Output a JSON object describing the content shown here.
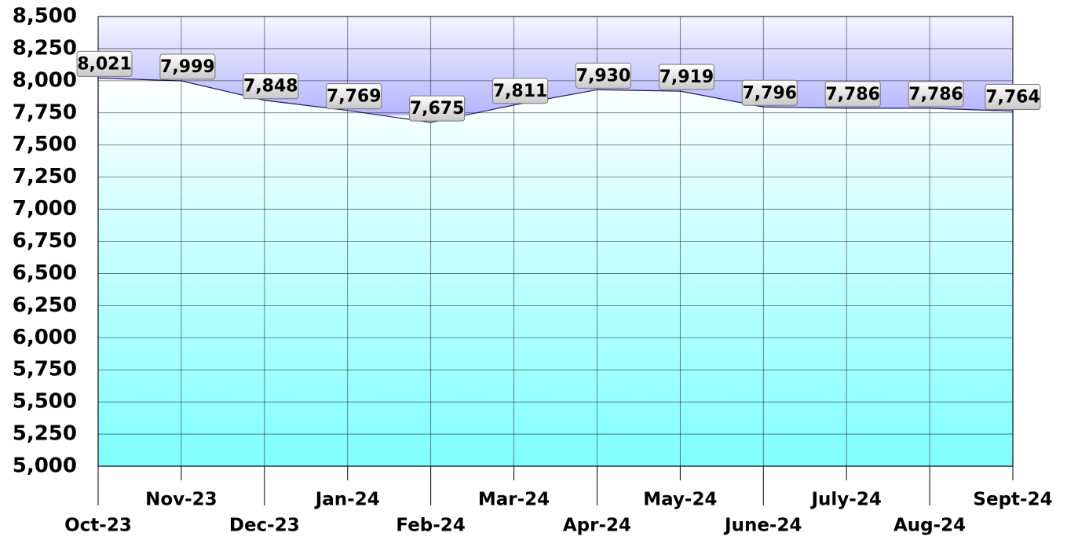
{
  "chart_data": {
    "type": "area",
    "categories": [
      "Oct-23",
      "Nov-23",
      "Dec-23",
      "Jan-24",
      "Feb-24",
      "Mar-24",
      "Apr-24",
      "May-24",
      "June-24",
      "July-24",
      "Aug-24",
      "Sept-24"
    ],
    "values": [
      8021,
      7999,
      7848,
      7769,
      7675,
      7811,
      7930,
      7919,
      7796,
      7786,
      7786,
      7764
    ],
    "value_labels": [
      "8,021",
      "7,999",
      "7,848",
      "7,769",
      "7,675",
      "7,811",
      "7,930",
      "7,919",
      "7,796",
      "7,786",
      "7,786",
      "7,764"
    ],
    "ylim": [
      5000,
      8500
    ],
    "yticks": [
      {
        "value": 5000,
        "label": "5,000"
      },
      {
        "value": 5250,
        "label": "5,250"
      },
      {
        "value": 5500,
        "label": "5,500"
      },
      {
        "value": 5750,
        "label": "5,750"
      },
      {
        "value": 6000,
        "label": "6,000"
      },
      {
        "value": 6250,
        "label": "6,250"
      },
      {
        "value": 6500,
        "label": "6,500"
      },
      {
        "value": 6750,
        "label": "6,750"
      },
      {
        "value": 7000,
        "label": "7,000"
      },
      {
        "value": 7250,
        "label": "7,250"
      },
      {
        "value": 7500,
        "label": "7,500"
      },
      {
        "value": 7750,
        "label": "7,750"
      },
      {
        "value": 8000,
        "label": "8,000"
      },
      {
        "value": 8250,
        "label": "8,250"
      },
      {
        "value": 8500,
        "label": "8,500"
      }
    ],
    "grid": true,
    "color": "#80ffff"
  }
}
